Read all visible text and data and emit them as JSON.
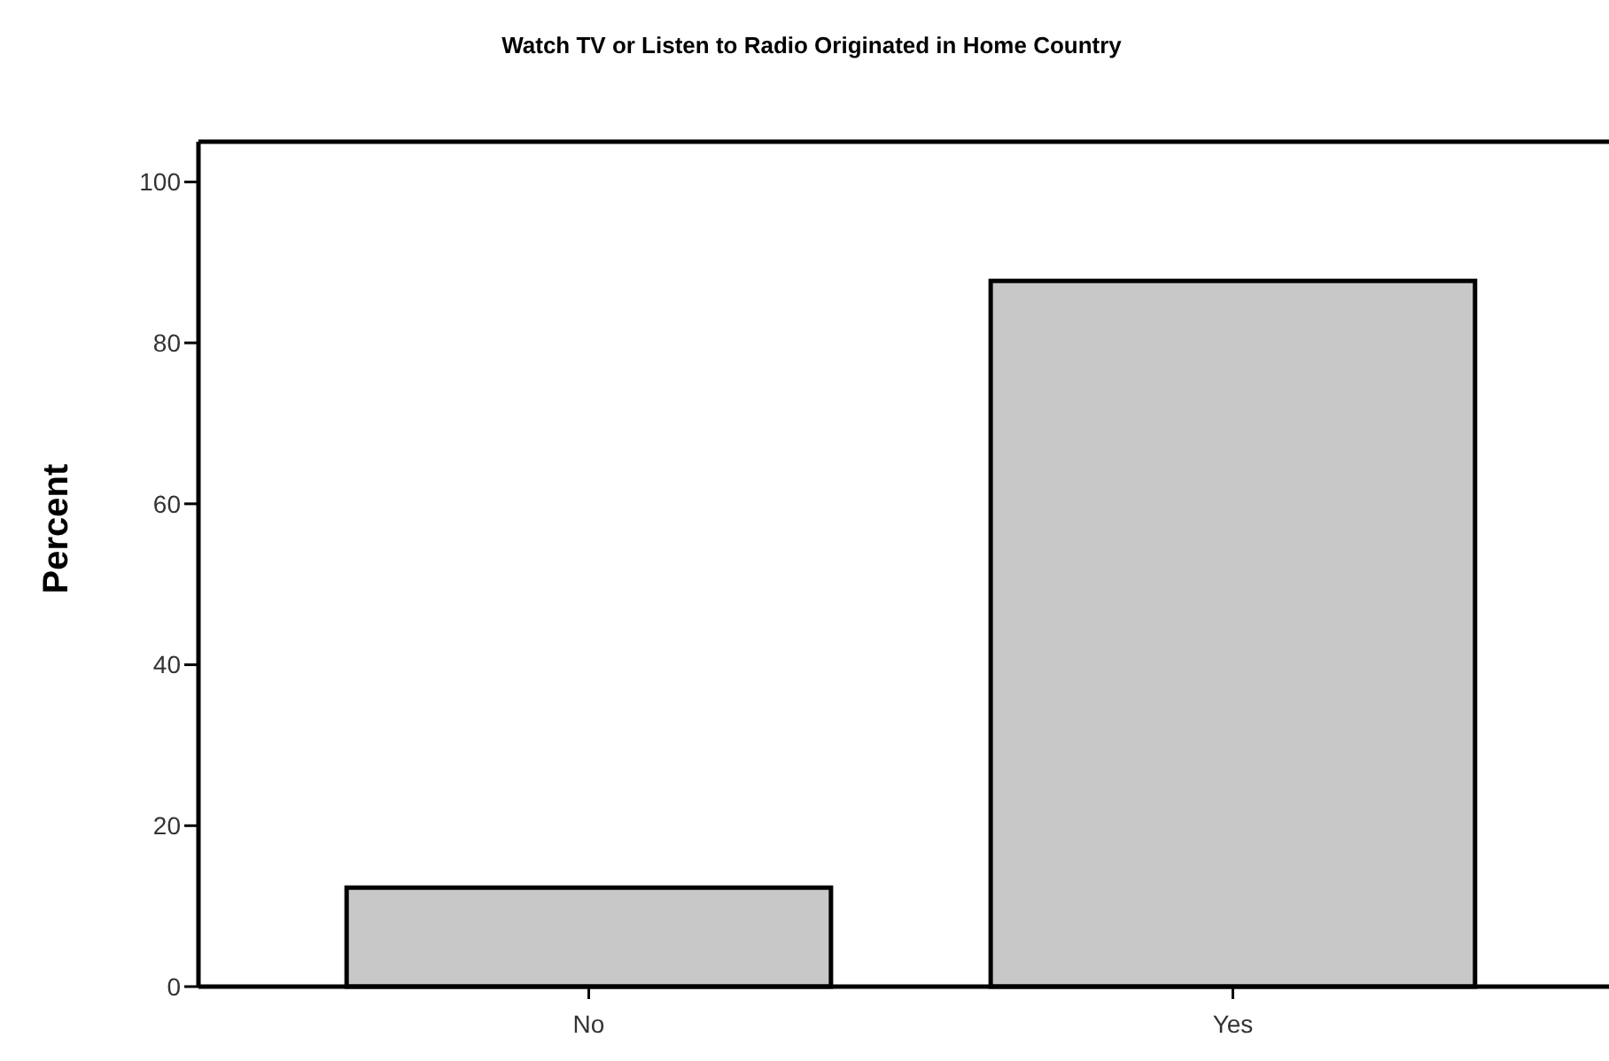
{
  "chart_data": {
    "type": "bar",
    "title": "Watch TV or Listen to Radio Originated in Home Country",
    "ylabel": "Percent",
    "categories": [
      "No",
      "Yes"
    ],
    "values": [
      12.3,
      87.7
    ],
    "color": "#c8c8c8",
    "ylim": [
      0,
      105
    ],
    "yticks": [
      0,
      20,
      40,
      60,
      80,
      100
    ],
    "grid": false
  }
}
